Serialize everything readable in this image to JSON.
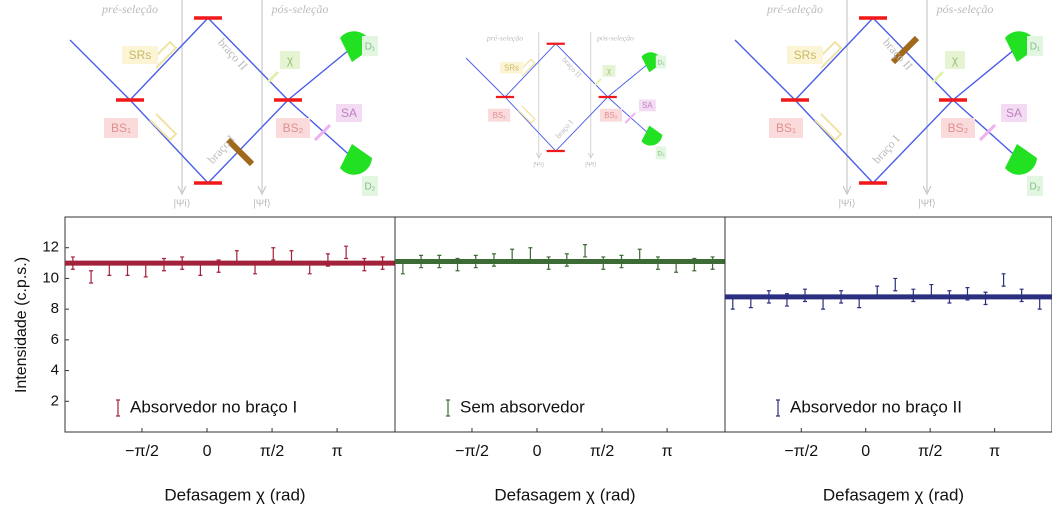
{
  "diagrams": [
    {
      "pre": "pré-seleção",
      "post": "pós-seleção",
      "srs": "SRs",
      "bs1": "BS₁",
      "bs2": "BS₂",
      "arm1": "braço I",
      "arm2": "braço II",
      "chi": "χ",
      "sa": "SA",
      "d1": "D₁",
      "d2": "D₂",
      "psi_i": "|Ψi⟩",
      "psi_f": "|Ψf⟩"
    },
    {
      "pre": "pré-seleção",
      "post": "pós-seleção",
      "srs": "SRs",
      "bs1": "BS₁",
      "bs2": "BS₂",
      "arm1": "braço I",
      "arm2": "braço II",
      "chi": "χ",
      "sa": "SA",
      "d1": "D₁",
      "d2": "D₂",
      "psi_i": "|Ψi⟩",
      "psi_f": "|Ψf⟩"
    },
    {
      "pre": "pré-seleção",
      "post": "pós-seleção",
      "srs": "SRs",
      "bs1": "BS₁",
      "bs2": "BS₂",
      "arm1": "braço I",
      "arm2": "braço II",
      "chi": "χ",
      "sa": "SA",
      "d1": "D₁",
      "d2": "D₂",
      "psi_i": "|Ψi⟩",
      "psi_f": "|Ψf⟩"
    }
  ],
  "chart_data": [
    {
      "type": "errorbar",
      "ylabel": "Intensidade (c.p.s.)",
      "xlabel": "Defasagem χ (rad)",
      "xlim": [
        -3.43,
        4.54
      ],
      "ylim": [
        0,
        14
      ],
      "yticks": [
        2,
        4,
        6,
        8,
        10,
        12
      ],
      "xticks": [
        {
          "value": -1.5708,
          "label": "−π/2"
        },
        0,
        {
          "value": 1.5708,
          "label": "π/2"
        },
        {
          "value": 3.1416,
          "label": "π"
        }
      ],
      "reference_line": 11.0,
      "series": [
        {
          "name": "Absorvedor no braço I",
          "color": "#a3213a",
          "x": [
            -3.24,
            -2.8,
            -2.36,
            -1.92,
            -1.48,
            -1.04,
            -0.6,
            -0.16,
            0.28,
            0.72,
            1.16,
            1.6,
            2.04,
            2.48,
            2.92,
            3.36,
            3.8,
            4.24
          ],
          "values": [
            11.0,
            10.1,
            10.6,
            10.6,
            10.5,
            10.9,
            11.0,
            10.6,
            10.8,
            11.4,
            10.7,
            11.6,
            11.4,
            10.7,
            11.2,
            11.7,
            10.9,
            11.0
          ],
          "errors": [
            0.4,
            0.4,
            0.4,
            0.4,
            0.4,
            0.4,
            0.4,
            0.4,
            0.4,
            0.4,
            0.4,
            0.4,
            0.4,
            0.4,
            0.4,
            0.4,
            0.4,
            0.4
          ]
        }
      ]
    },
    {
      "type": "errorbar",
      "xlabel": "Defasagem χ (rad)",
      "xlim": [
        -3.43,
        4.54
      ],
      "ylim": [
        0,
        14
      ],
      "xticks": [
        {
          "value": -1.5708,
          "label": "−π/2"
        },
        0,
        {
          "value": 1.5708,
          "label": "π/2"
        },
        {
          "value": 3.1416,
          "label": "π"
        }
      ],
      "reference_line": 11.1,
      "series": [
        {
          "name": "Sem absorvedor",
          "color": "#3d6b35",
          "x": [
            -3.24,
            -2.8,
            -2.36,
            -1.92,
            -1.48,
            -1.04,
            -0.6,
            -0.16,
            0.28,
            0.72,
            1.16,
            1.6,
            2.04,
            2.48,
            2.92,
            3.36,
            3.8,
            4.24
          ],
          "values": [
            10.7,
            11.1,
            11.1,
            10.9,
            11.1,
            11.2,
            11.5,
            11.6,
            11.0,
            11.2,
            11.8,
            11.0,
            11.1,
            11.5,
            11.0,
            10.8,
            10.9,
            11.0
          ],
          "errors": [
            0.4,
            0.4,
            0.4,
            0.4,
            0.4,
            0.4,
            0.4,
            0.4,
            0.4,
            0.4,
            0.4,
            0.4,
            0.4,
            0.4,
            0.4,
            0.4,
            0.4,
            0.4
          ]
        }
      ]
    },
    {
      "type": "errorbar",
      "xlabel": "Defasagem χ (rad)",
      "xlim": [
        -3.43,
        4.54
      ],
      "ylim": [
        0,
        14
      ],
      "xticks": [
        {
          "value": -1.5708,
          "label": "−π/2"
        },
        0,
        {
          "value": 1.5708,
          "label": "π/2"
        },
        {
          "value": 3.1416,
          "label": "π"
        }
      ],
      "reference_line": 8.8,
      "series": [
        {
          "name": "Absorvedor no braço II",
          "color": "#2b2f80",
          "x": [
            -3.24,
            -2.8,
            -2.36,
            -1.92,
            -1.48,
            -1.04,
            -0.6,
            -0.16,
            0.28,
            0.72,
            1.16,
            1.6,
            2.04,
            2.48,
            2.92,
            3.36,
            3.8,
            4.24
          ],
          "values": [
            8.4,
            8.5,
            8.8,
            8.6,
            8.9,
            8.4,
            8.8,
            8.5,
            9.1,
            9.6,
            8.9,
            9.2,
            8.8,
            9.0,
            8.7,
            9.9,
            8.9,
            8.4
          ],
          "errors": [
            0.4,
            0.4,
            0.4,
            0.4,
            0.4,
            0.4,
            0.4,
            0.4,
            0.4,
            0.4,
            0.4,
            0.4,
            0.4,
            0.4,
            0.4,
            0.4,
            0.4,
            0.4
          ]
        }
      ]
    }
  ]
}
